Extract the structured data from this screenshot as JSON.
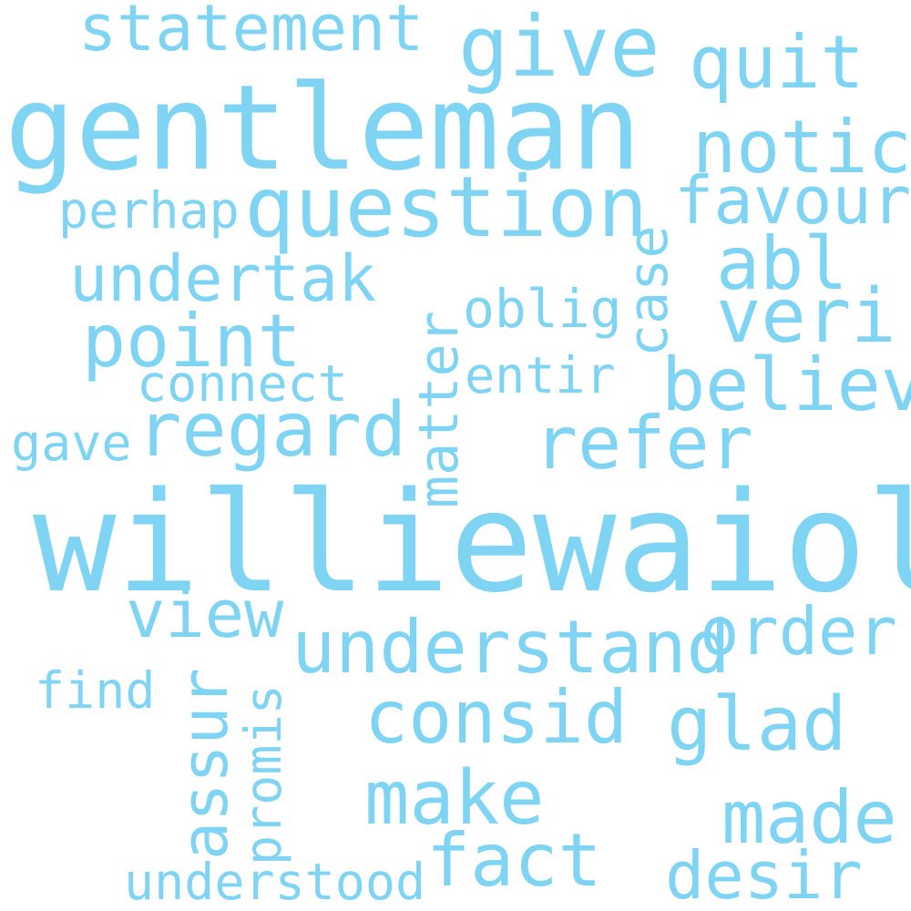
{
  "cloud": {
    "color": "#80d4f3",
    "words": [
      "williewaiola",
      "gentleman",
      "question",
      "statement",
      "give",
      "quit",
      "notic",
      "favour",
      "perhap",
      "case",
      "undertak",
      "abl",
      "matter",
      "oblig",
      "veri",
      "point",
      "believ",
      "connect",
      "entir",
      "gave",
      "regard",
      "refer",
      "view",
      "order",
      "understand",
      "find",
      "assur",
      "promis",
      "consid",
      "glad",
      "make",
      "made",
      "fact",
      "desir",
      "understood"
    ]
  }
}
